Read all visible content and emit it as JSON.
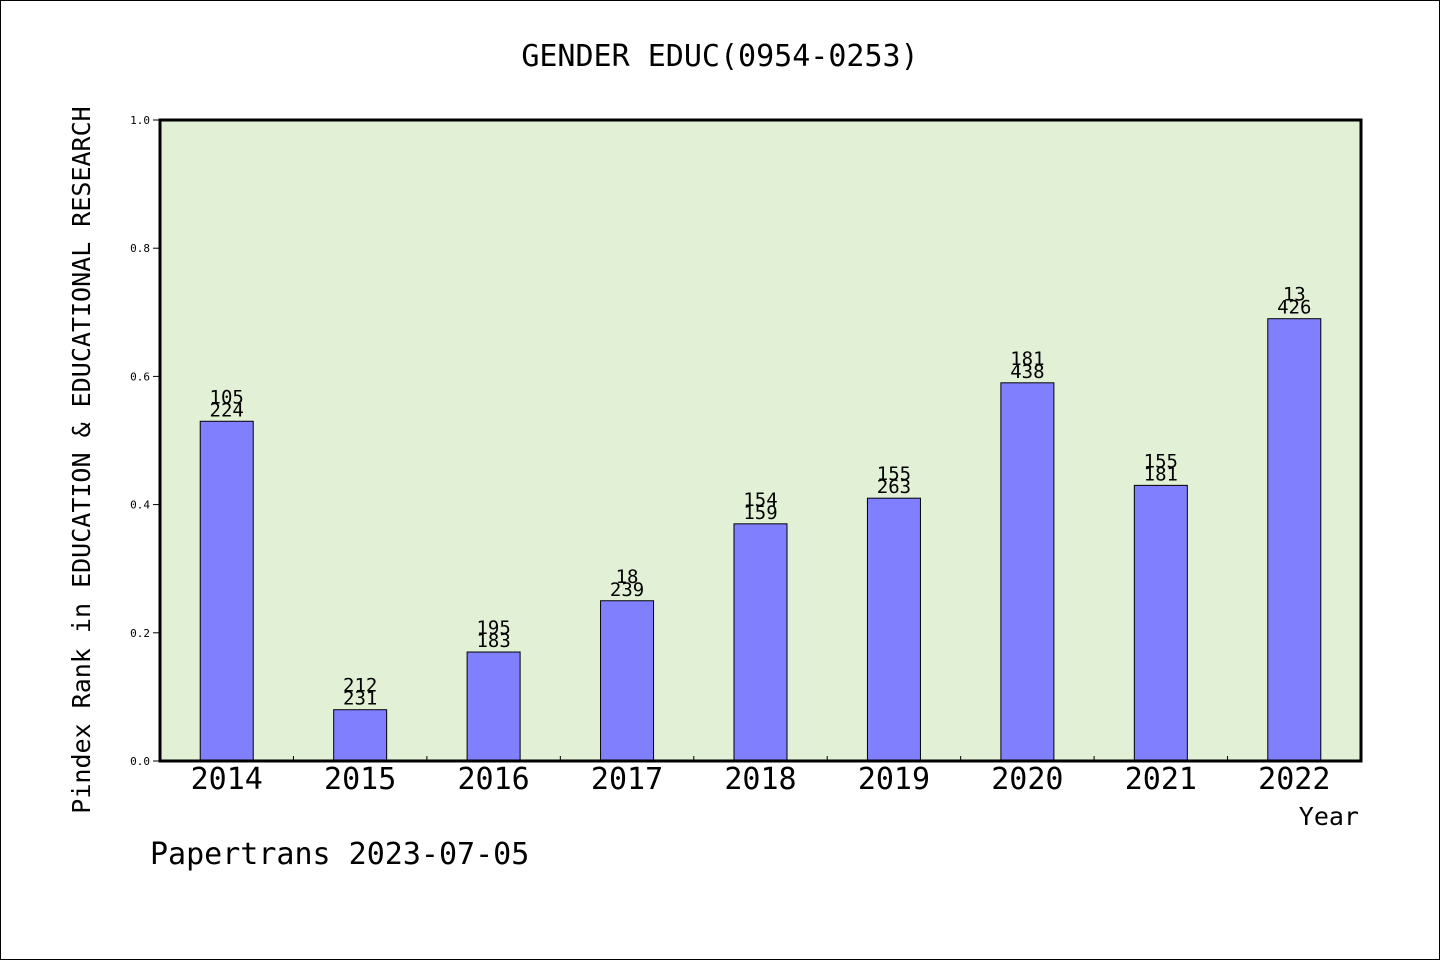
{
  "chart_data": {
    "type": "bar",
    "title": "GENDER EDUC(0954-0253)",
    "xlabel": "Year",
    "ylabel": "Pindex Rank in EDUCATION & EDUCATIONAL RESEARCH",
    "footer": "Papertrans 2023-07-05",
    "categories": [
      "2014",
      "2015",
      "2016",
      "2017",
      "2018",
      "2019",
      "2020",
      "2021",
      "2022"
    ],
    "values": [
      0.53,
      0.08,
      0.17,
      0.25,
      0.37,
      0.41,
      0.59,
      0.43,
      0.69
    ],
    "labels_top": [
      "105",
      "212",
      "195",
      "18",
      "154",
      "155",
      "181",
      "155",
      "13"
    ],
    "labels_bottom": [
      "224",
      "231",
      "183",
      "239",
      "159",
      "263",
      "438",
      "181",
      "426"
    ],
    "y_ticks": [
      "0.0",
      "0.2",
      "0.4",
      "0.6",
      "0.8",
      "1.0"
    ],
    "ylim": [
      0,
      1.0
    ],
    "grid": false,
    "colors": {
      "plot_background": "#e2f0d6",
      "bar_fill": "#8080ff",
      "bar_stroke": "#000000"
    }
  }
}
